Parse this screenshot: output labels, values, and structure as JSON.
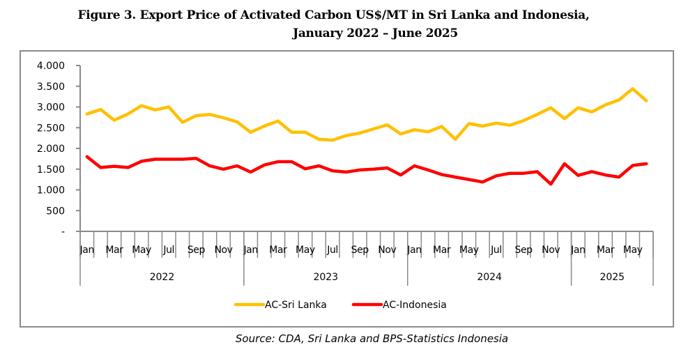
{
  "figure": {
    "title_line1": "Figure 3. Export Price of Activated Carbon US$/MT in Sri Lanka and Indonesia,",
    "title_line2": "January 2022 – June 2025",
    "source": "Source: CDA, Sri Lanka and BPS-Statistics Indonesia"
  },
  "chart_data": {
    "type": "line",
    "title": "Figure 3. Export Price of Activated Carbon US$/MT in Sri Lanka and Indonesia, January 2022 – June 2025",
    "xlabel": "",
    "ylabel": "",
    "ylim": [
      0,
      4000
    ],
    "yticks": [
      0,
      500,
      1000,
      1500,
      2000,
      2500,
      3000,
      3500,
      4000
    ],
    "ytick_labels": [
      "-",
      "500",
      "1.000",
      "1.500",
      "2.000",
      "2.500",
      "3.000",
      "3.500",
      "4.000"
    ],
    "grid": false,
    "legend_position": "bottom",
    "x": [
      "Jan 2022",
      "Feb 2022",
      "Mar 2022",
      "Apr 2022",
      "May 2022",
      "Jun 2022",
      "Jul 2022",
      "Aug 2022",
      "Sep 2022",
      "Oct 2022",
      "Nov 2022",
      "Dec 2022",
      "Jan 2023",
      "Feb 2023",
      "Mar 2023",
      "Apr 2023",
      "May 2023",
      "Jun 2023",
      "Jul 2023",
      "Aug 2023",
      "Sep 2023",
      "Oct 2023",
      "Nov 2023",
      "Dec 2023",
      "Jan 2024",
      "Feb 2024",
      "Mar 2024",
      "Apr 2024",
      "May 2024",
      "Jun 2024",
      "Jul 2024",
      "Aug 2024",
      "Sep 2024",
      "Oct 2024",
      "Nov 2024",
      "Dec 2024",
      "Jan 2025",
      "Feb 2025",
      "Mar 2025",
      "Apr 2025",
      "May 2025",
      "Jun 2025"
    ],
    "month_tick_labels": [
      "Jan",
      "",
      "Mar",
      "",
      "May",
      "",
      "Jul",
      "",
      "Sep",
      "",
      "Nov",
      "",
      "Jan",
      "",
      "Mar",
      "",
      "May",
      "",
      "Jul",
      "",
      "Sep",
      "",
      "Nov",
      "",
      "Jan",
      "",
      "Mar",
      "",
      "May",
      "",
      "Jul",
      "",
      "Sep",
      "",
      "Nov",
      "",
      "Jan",
      "",
      "Mar",
      "",
      "May",
      ""
    ],
    "year_groups": [
      {
        "label": "2022",
        "months": 12
      },
      {
        "label": "2023",
        "months": 12
      },
      {
        "label": "2024",
        "months": 12
      },
      {
        "label": "2025",
        "months": 6
      }
    ],
    "series": [
      {
        "name": "AC-Sri Lanka",
        "color": "#FFC000",
        "values": [
          2830,
          2940,
          2680,
          2830,
          3030,
          2930,
          3000,
          2630,
          2790,
          2820,
          2740,
          2640,
          2390,
          2540,
          2660,
          2390,
          2390,
          2220,
          2200,
          2310,
          2370,
          2470,
          2570,
          2350,
          2450,
          2400,
          2530,
          2220,
          2600,
          2540,
          2610,
          2560,
          2670,
          2820,
          2980,
          2720,
          2980,
          2880,
          3050,
          3170,
          3440,
          3150
        ]
      },
      {
        "name": "AC-Indonesia",
        "color": "#FF0000",
        "values": [
          1800,
          1540,
          1570,
          1540,
          1690,
          1740,
          1740,
          1740,
          1760,
          1580,
          1500,
          1580,
          1430,
          1600,
          1680,
          1680,
          1510,
          1580,
          1460,
          1430,
          1480,
          1500,
          1530,
          1360,
          1580,
          1480,
          1370,
          1310,
          1250,
          1190,
          1340,
          1400,
          1400,
          1440,
          1140,
          1630,
          1350,
          1440,
          1360,
          1310,
          1590,
          1630
        ]
      }
    ]
  }
}
